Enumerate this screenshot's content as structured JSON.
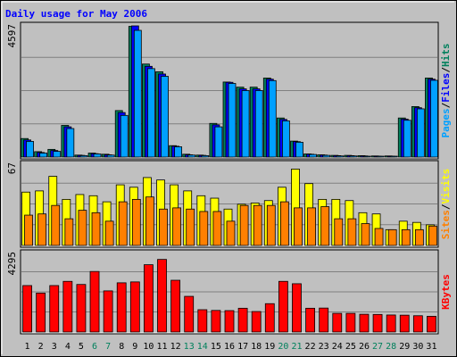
{
  "chart_data": {
    "type": "bar",
    "title": "Daily usage for May 2006",
    "colors": {
      "background": "#c0c0c0",
      "plot_bg": "#c0c0c0",
      "grid": "#808080",
      "title": "#0000ff",
      "hits": "#00805c",
      "files": "#0000ff",
      "pages": "#00a0ff",
      "visits": "#ffff00",
      "sites": "#ff8000",
      "kbytes": "#ff0000",
      "weekend_label": "#00805c"
    },
    "categories": [
      "1",
      "2",
      "3",
      "4",
      "5",
      "6",
      "7",
      "8",
      "9",
      "10",
      "11",
      "12",
      "13",
      "14",
      "15",
      "16",
      "17",
      "18",
      "19",
      "20",
      "21",
      "22",
      "23",
      "24",
      "25",
      "26",
      "27",
      "28",
      "29",
      "30",
      "31"
    ],
    "weekend_days": [
      "6",
      "7",
      "13",
      "14",
      "20",
      "21",
      "27",
      "28"
    ],
    "panels": [
      {
        "id": "requests",
        "max_label": "4597",
        "ylim": [
          0,
          4597
        ],
        "legend": [
          "Pages",
          "Files",
          "Hits"
        ],
        "series": [
          {
            "name": "Hits",
            "color_key": "hits",
            "values": [
              650,
              190,
              270,
              1110,
              70,
              140,
              100,
              1630,
              4580,
              3260,
              2990,
              400,
              100,
              70,
              1180,
              2630,
              2450,
              2450,
              2770,
              1370,
              560,
              110,
              80,
              60,
              60,
              50,
              40,
              40,
              1370,
              1770,
              2770
            ]
          },
          {
            "name": "Files",
            "color_key": "files",
            "values": [
              600,
              160,
              230,
              1060,
              60,
              120,
              80,
              1560,
              4597,
              3180,
              2910,
              380,
              80,
              60,
              1130,
              2620,
              2390,
              2390,
              2730,
              1320,
              540,
              100,
              70,
              50,
              50,
              40,
              30,
              30,
              1330,
              1730,
              2730
            ]
          },
          {
            "name": "Pages",
            "color_key": "pages",
            "values": [
              550,
              140,
              200,
              1000,
              50,
              110,
              70,
              1460,
              4440,
              3100,
              2830,
              360,
              70,
              50,
              1060,
              2580,
              2330,
              2330,
              2680,
              1270,
              520,
              90,
              60,
              40,
              40,
              30,
              20,
              20,
              1290,
              1690,
              2690
            ]
          }
        ]
      },
      {
        "id": "visits",
        "max_label": "67",
        "ylim": [
          0,
          67
        ],
        "legend": [
          "Sites",
          "Visits"
        ],
        "series": [
          {
            "name": "Visits",
            "color_key": "visits",
            "values": [
              44,
              45,
              57,
              38,
              42,
              41,
              36,
              50,
              48,
              56,
              54,
              50,
              45,
              41,
              39,
              30,
              34,
              35,
              37,
              48,
              63,
              51,
              38,
              38,
              37,
              27,
              26,
              13,
              20,
              19,
              17
            ]
          },
          {
            "name": "Sites",
            "color_key": "sites",
            "values": [
              25,
              26,
              33,
              22,
              29,
              27,
              20,
              36,
              38,
              40,
              30,
              31,
              30,
              28,
              28,
              20,
              33,
              33,
              33,
              36,
              31,
              31,
              32,
              22,
              22,
              18,
              14,
              13,
              13,
              13,
              16
            ]
          }
        ]
      },
      {
        "id": "kbytes",
        "max_label": "4295",
        "ylim": [
          0,
          4295
        ],
        "legend": [
          "KBytes"
        ],
        "series": [
          {
            "name": "KBytes",
            "color_key": "kbytes",
            "values": [
              2540,
              2130,
              2540,
              2770,
              2600,
              3310,
              2250,
              2690,
              2740,
              3680,
              3970,
              2830,
              1950,
              1220,
              1180,
              1170,
              1300,
              1120,
              1550,
              2770,
              2640,
              1300,
              1310,
              1020,
              1020,
              970,
              960,
              930,
              920,
              890,
              860
            ]
          }
        ]
      }
    ]
  }
}
